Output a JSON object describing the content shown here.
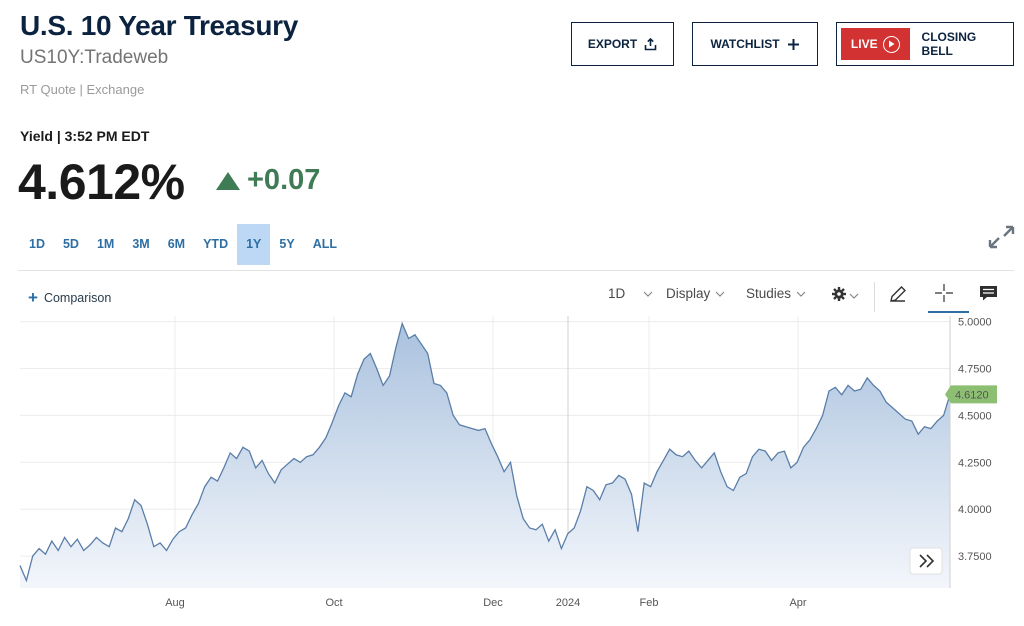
{
  "header": {
    "title": "U.S. 10 Year Treasury",
    "symbol": "US10Y:Tradeweb",
    "quote_source": "RT Quote | Exchange"
  },
  "actions": {
    "export_label": "EXPORT",
    "watchlist_label": "WATCHLIST",
    "live_label": "LIVE",
    "closing_bell_label": "CLOSING BELL"
  },
  "quote": {
    "yield_label": "Yield | 3:52 PM EDT",
    "price": "4.612%",
    "change": "+0.07",
    "change_color": "#3f7b55",
    "direction": "up"
  },
  "ranges": {
    "items": [
      "1D",
      "5D",
      "1M",
      "3M",
      "6M",
      "YTD",
      "1Y",
      "5Y",
      "ALL"
    ],
    "active": "1Y"
  },
  "toolbar": {
    "comparison_label": "Comparison",
    "interval_label": "1D",
    "display_label": "Display",
    "studies_label": "Studies"
  },
  "chart_data": {
    "type": "area",
    "x_ticks": [
      "Aug",
      "Oct",
      "Dec",
      "2024",
      "Feb",
      "Apr"
    ],
    "y_ticks": [
      "5.0000",
      "4.7500",
      "4.5000",
      "4.2500",
      "4.0000",
      "3.7500"
    ],
    "ylim": [
      3.58,
      5.03
    ],
    "grid": true,
    "last_value_label": "4.6120",
    "line_color": "#5a7ea8",
    "fill_top_color": "#aac2de",
    "fill_bottom_color": "#f3f6fb",
    "last_label_color": "#8dbf72",
    "series": [
      {
        "values": [
          3.7,
          3.62,
          3.75,
          3.79,
          3.76,
          3.83,
          3.78,
          3.85,
          3.8,
          3.84,
          3.78,
          3.81,
          3.85,
          3.82,
          3.8,
          3.9,
          3.88,
          3.95,
          4.05,
          4.02,
          3.92,
          3.8,
          3.82,
          3.78,
          3.84,
          3.88,
          3.9,
          3.97,
          4.03,
          4.12,
          4.17,
          4.15,
          4.22,
          4.3,
          4.27,
          4.33,
          4.31,
          4.22,
          4.26,
          4.19,
          4.14,
          4.21,
          4.24,
          4.27,
          4.25,
          4.28,
          4.29,
          4.33,
          4.38,
          4.46,
          4.55,
          4.62,
          4.6,
          4.72,
          4.8,
          4.83,
          4.75,
          4.66,
          4.71,
          4.86,
          4.99,
          4.91,
          4.93,
          4.88,
          4.83,
          4.67,
          4.66,
          4.62,
          4.5,
          4.45,
          4.44,
          4.43,
          4.42,
          4.43,
          4.35,
          4.28,
          4.2,
          4.25,
          4.07,
          3.95,
          3.9,
          3.89,
          3.92,
          3.83,
          3.89,
          3.79,
          3.87,
          3.9,
          3.99,
          4.12,
          4.1,
          4.05,
          4.13,
          4.14,
          4.18,
          4.16,
          4.08,
          3.88,
          4.14,
          4.12,
          4.2,
          4.26,
          4.32,
          4.29,
          4.28,
          4.31,
          4.26,
          4.22,
          4.26,
          4.3,
          4.2,
          4.12,
          4.1,
          4.17,
          4.19,
          4.28,
          4.32,
          4.31,
          4.26,
          4.3,
          4.31,
          4.22,
          4.25,
          4.33,
          4.37,
          4.43,
          4.5,
          4.63,
          4.65,
          4.61,
          4.66,
          4.63,
          4.64,
          4.7,
          4.66,
          4.63,
          4.57,
          4.54,
          4.51,
          4.48,
          4.47,
          4.4,
          4.44,
          4.43,
          4.47,
          4.5,
          4.612
        ]
      }
    ]
  }
}
